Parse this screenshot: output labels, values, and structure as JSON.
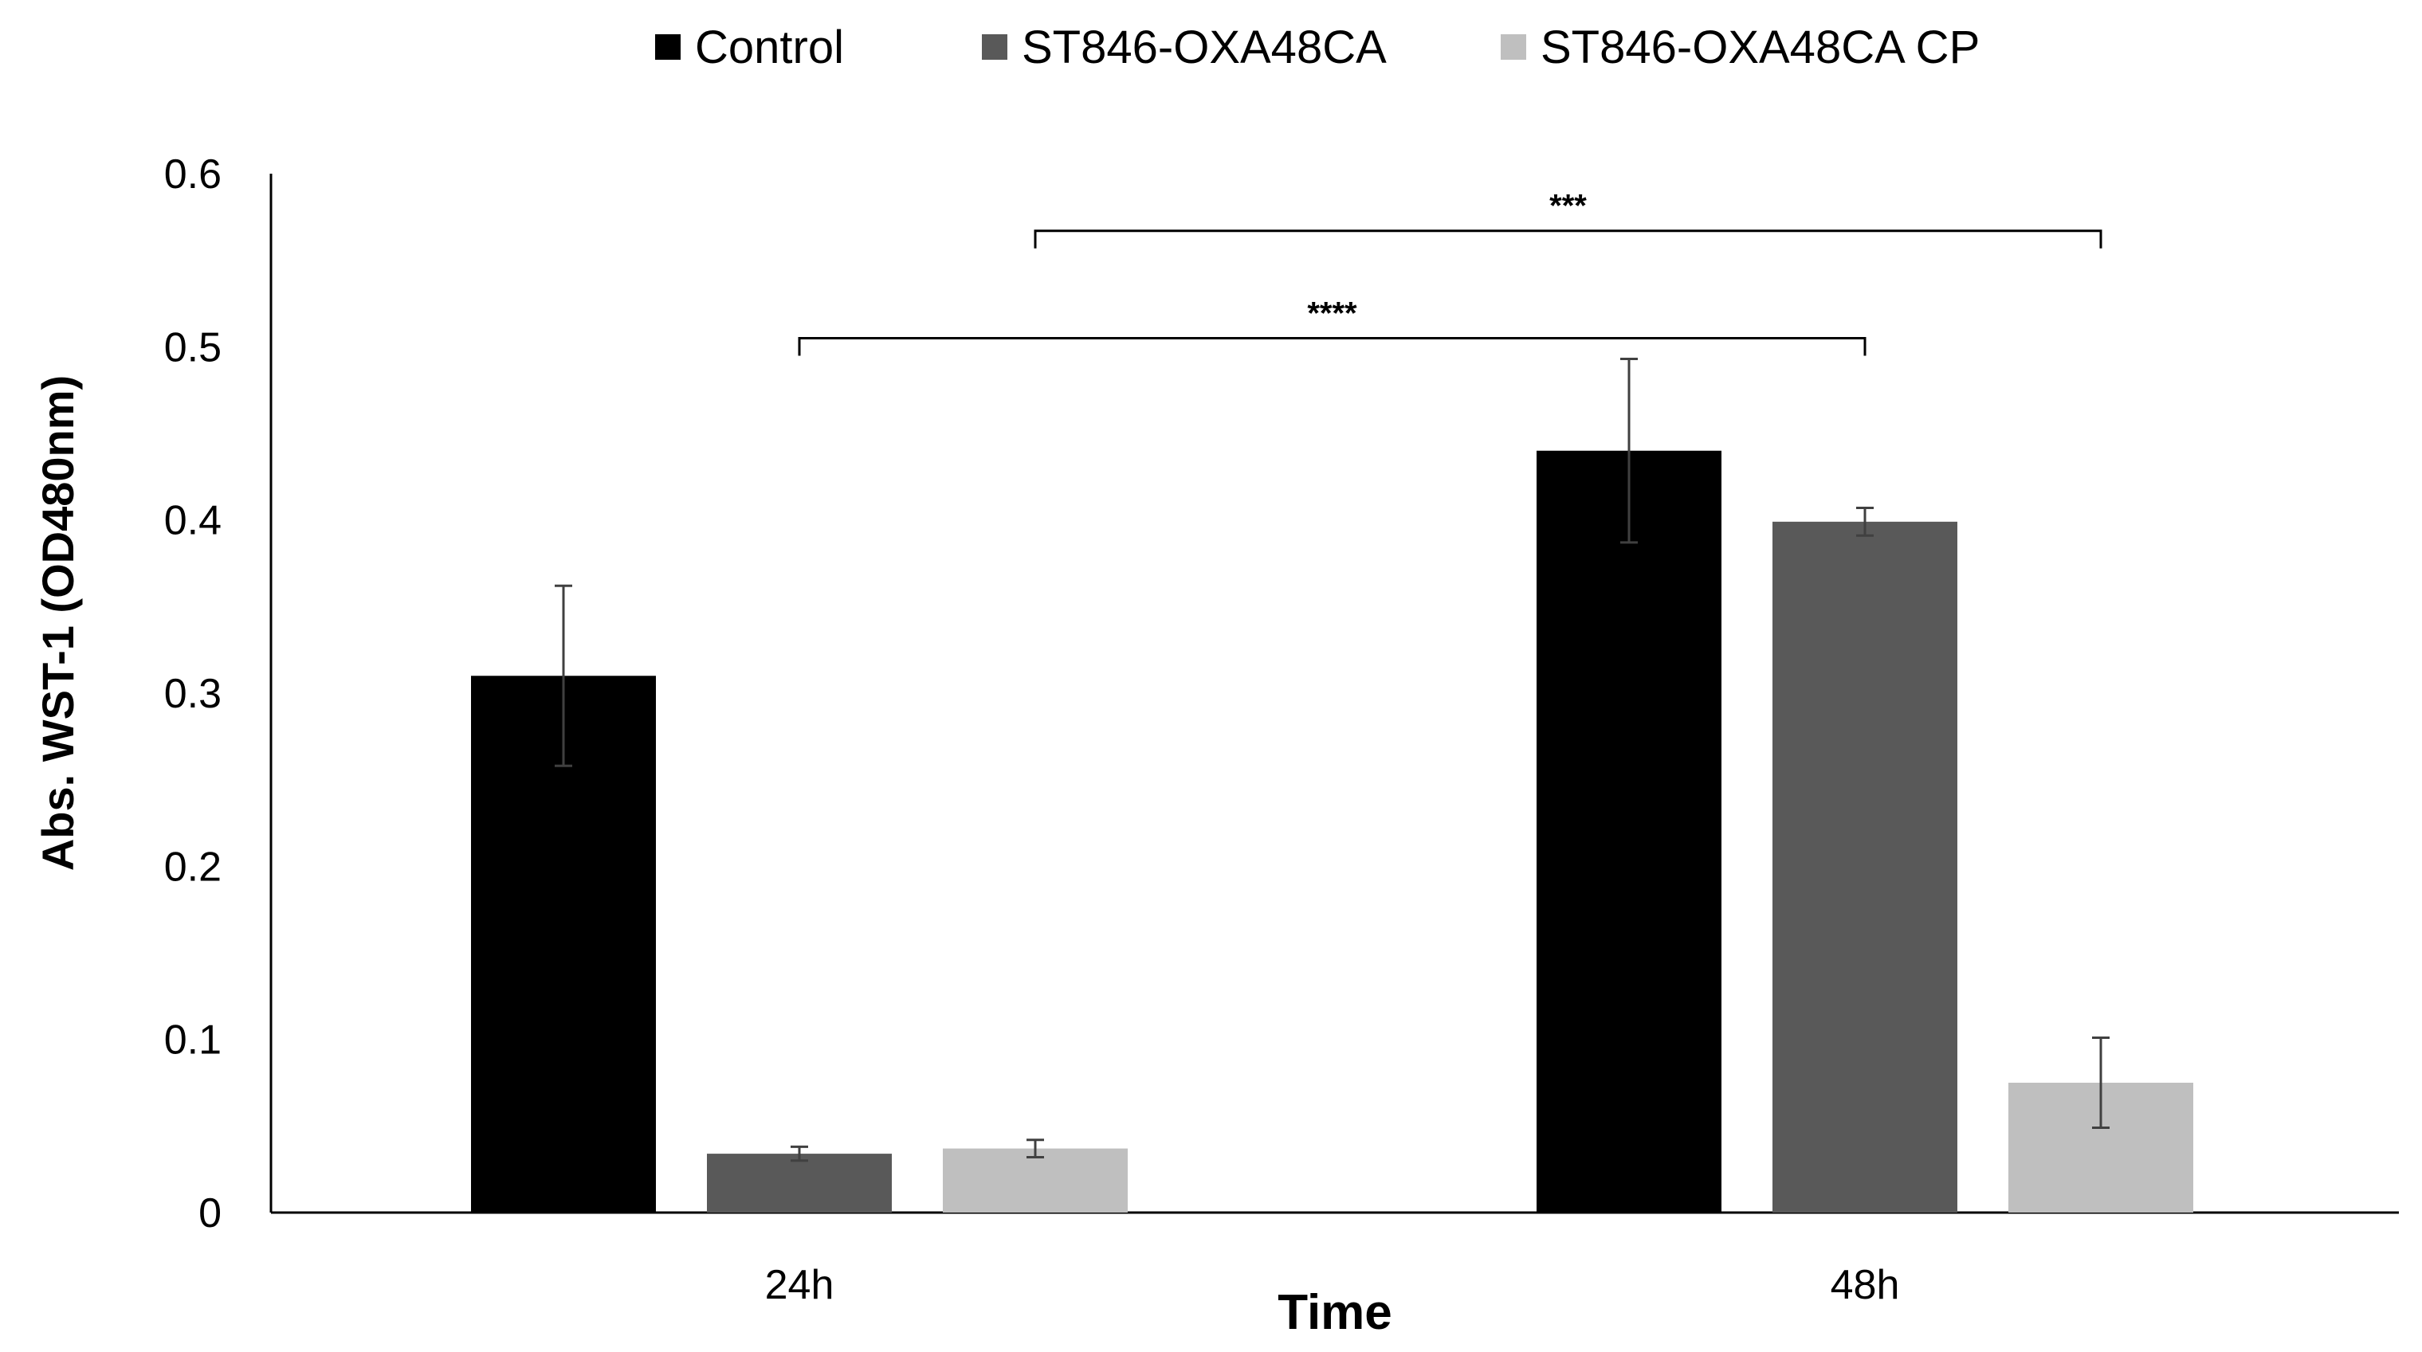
{
  "chart_data": {
    "type": "bar",
    "title": "",
    "xlabel": "Time",
    "ylabel": "Abs. WST-1 (OD480nm)",
    "ylim": [
      0,
      0.6
    ],
    "yticks": [
      "0",
      "0.1",
      "0.2",
      "0.3",
      "0.4",
      "0.5",
      "0.6"
    ],
    "categories": [
      "24h",
      "48h"
    ],
    "series": [
      {
        "name": "Control",
        "color": "#000000",
        "values": [
          0.31,
          0.44
        ],
        "errors": [
          0.052,
          0.053
        ]
      },
      {
        "name": "ST846-OXA48CA",
        "color": "#595959",
        "values": [
          0.034,
          0.399
        ],
        "errors": [
          0.004,
          0.008
        ]
      },
      {
        "name": "ST846-OXA48CA CP",
        "color": "#bfbfbf",
        "values": [
          0.037,
          0.075
        ],
        "errors": [
          0.005,
          0.026
        ]
      }
    ],
    "grid": false,
    "legend_position": "top-center",
    "annotations": [
      {
        "label": "****",
        "from": {
          "category": "24h",
          "series": "ST846-OXA48CA"
        },
        "to": {
          "category": "48h",
          "series": "ST846-OXA48CA"
        },
        "level": 0.505
      },
      {
        "label": "***",
        "from": {
          "category": "24h",
          "series": "ST846-OXA48CA CP"
        },
        "to": {
          "category": "48h",
          "series": "ST846-OXA48CA CP"
        },
        "level": 0.567
      }
    ]
  }
}
